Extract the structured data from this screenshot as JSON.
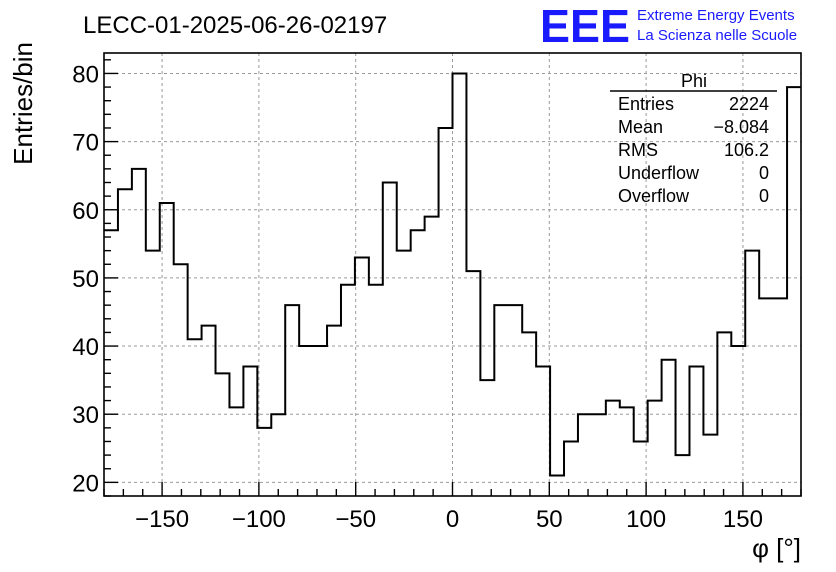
{
  "colors": {
    "logo": "#1a1aff",
    "grid": "#9a9a9a",
    "line": "#000000"
  },
  "logo": {
    "mark": "EEE",
    "line1": "Extreme Energy Events",
    "line2": "La Scienza nelle Scuole"
  },
  "stats": {
    "title": "Phi",
    "rows": [
      {
        "label": "Entries",
        "value": "2224"
      },
      {
        "label": "Mean",
        "value": "−8.084"
      },
      {
        "label": "RMS",
        "value": "106.2"
      },
      {
        "label": "Underflow",
        "value": "0"
      },
      {
        "label": "Overflow",
        "value": "0"
      }
    ]
  },
  "chart_data": {
    "type": "histogram",
    "title": "LECC-01-2025-06-26-02197",
    "xlabel": "φ [°]",
    "ylabel": "Entries/bin",
    "xlim": [
      -180,
      180
    ],
    "ylim": [
      18,
      83
    ],
    "grid": true,
    "bin_width": 7.2,
    "x_ticks": [
      -150,
      -100,
      -50,
      0,
      50,
      100,
      150
    ],
    "x_tick_labels": [
      "−150",
      "−100",
      "−50",
      "0",
      "50",
      "100",
      "150"
    ],
    "y_ticks": [
      20,
      30,
      40,
      50,
      60,
      70,
      80
    ],
    "y_tick_labels": [
      "20",
      "30",
      "40",
      "50",
      "60",
      "70",
      "80"
    ],
    "bins_low_edge": [
      -180,
      -172.8,
      -165.6,
      -158.4,
      -151.2,
      -144,
      -136.8,
      -129.6,
      -122.4,
      -115.2,
      -108,
      -100.8,
      -93.6,
      -86.4,
      -79.2,
      -72,
      -64.8,
      -57.6,
      -50.4,
      -43.2,
      -36,
      -28.8,
      -21.6,
      -14.4,
      -7.2,
      0,
      7.2,
      14.4,
      21.6,
      28.8,
      36,
      43.2,
      50.4,
      57.6,
      64.8,
      72,
      79.2,
      86.4,
      93.6,
      100.8,
      108,
      115.2,
      122.4,
      129.6,
      136.8,
      144,
      151.2,
      158.4,
      165.6,
      172.8
    ],
    "values": [
      57,
      63,
      66,
      54,
      61,
      52,
      41,
      43,
      36,
      31,
      37,
      28,
      30,
      46,
      40,
      40,
      43,
      49,
      53,
      49,
      64,
      54,
      57,
      59,
      72,
      80,
      51,
      35,
      46,
      46,
      42,
      37,
      21,
      26,
      30,
      30,
      32,
      31,
      26,
      32,
      38,
      24,
      37,
      27,
      42,
      40,
      54,
      47,
      47,
      78
    ]
  }
}
